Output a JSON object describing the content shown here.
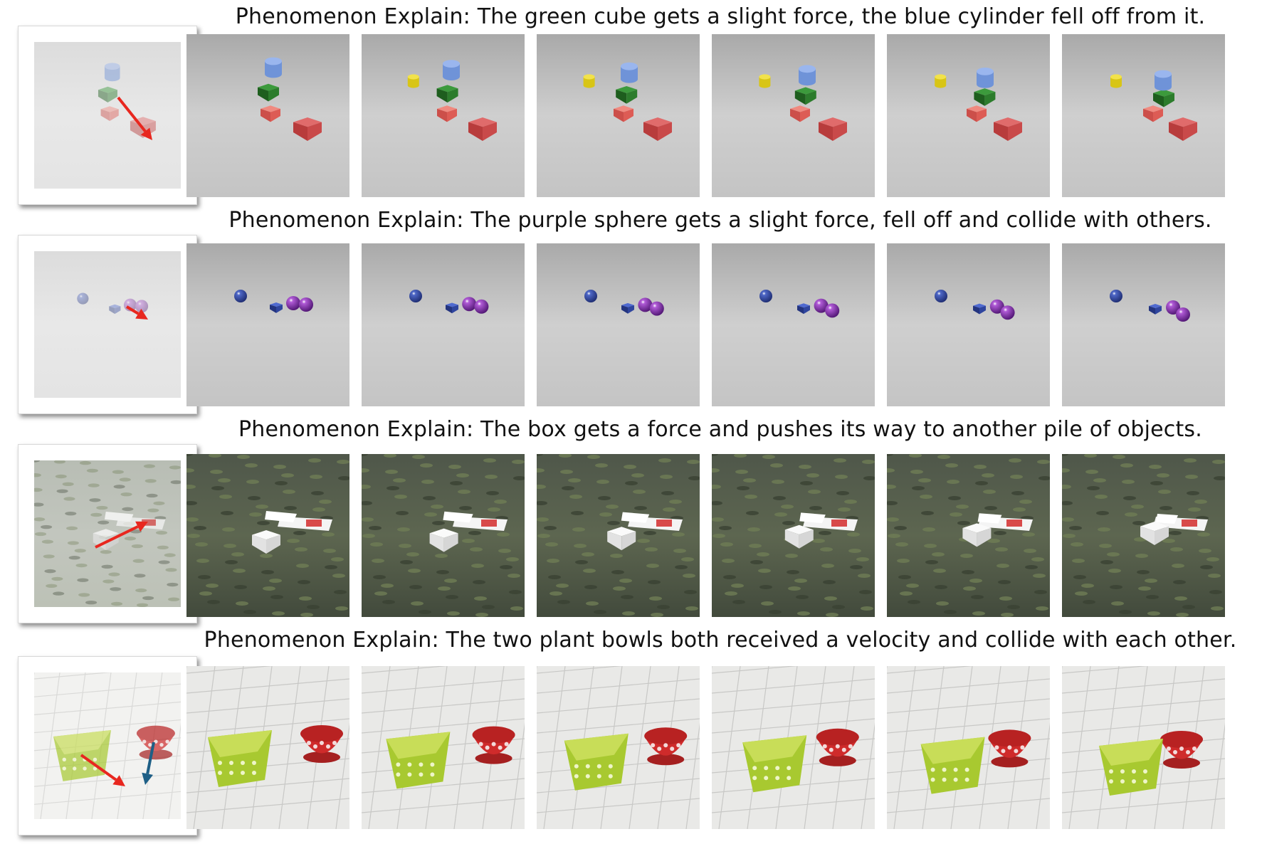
{
  "rows": [
    {
      "caption": "Phenomenon Explain: The green cube gets a slight force, the blue cylinder fell off from it.",
      "scene": "blocks",
      "ref_arrows": [
        {
          "color": "#e8271f"
        }
      ]
    },
    {
      "caption": "Phenomenon Explain: The purple sphere gets a slight force, fell off and collide with others.",
      "scene": "spheres",
      "ref_arrows": [
        {
          "color": "#e8271f"
        }
      ]
    },
    {
      "caption": "Phenomenon Explain: The box gets a force and pushes its way to another pile of objects.",
      "scene": "grass",
      "ref_arrows": [
        {
          "color": "#e8271f"
        }
      ]
    },
    {
      "caption": "Phenomenon Explain: The two plant bowls both received a velocity and collide with each other.",
      "scene": "bowls",
      "ref_arrows": [
        {
          "color": "#e8271f"
        },
        {
          "color": "#1e5f86"
        }
      ]
    }
  ],
  "frames_per_row": 6
}
